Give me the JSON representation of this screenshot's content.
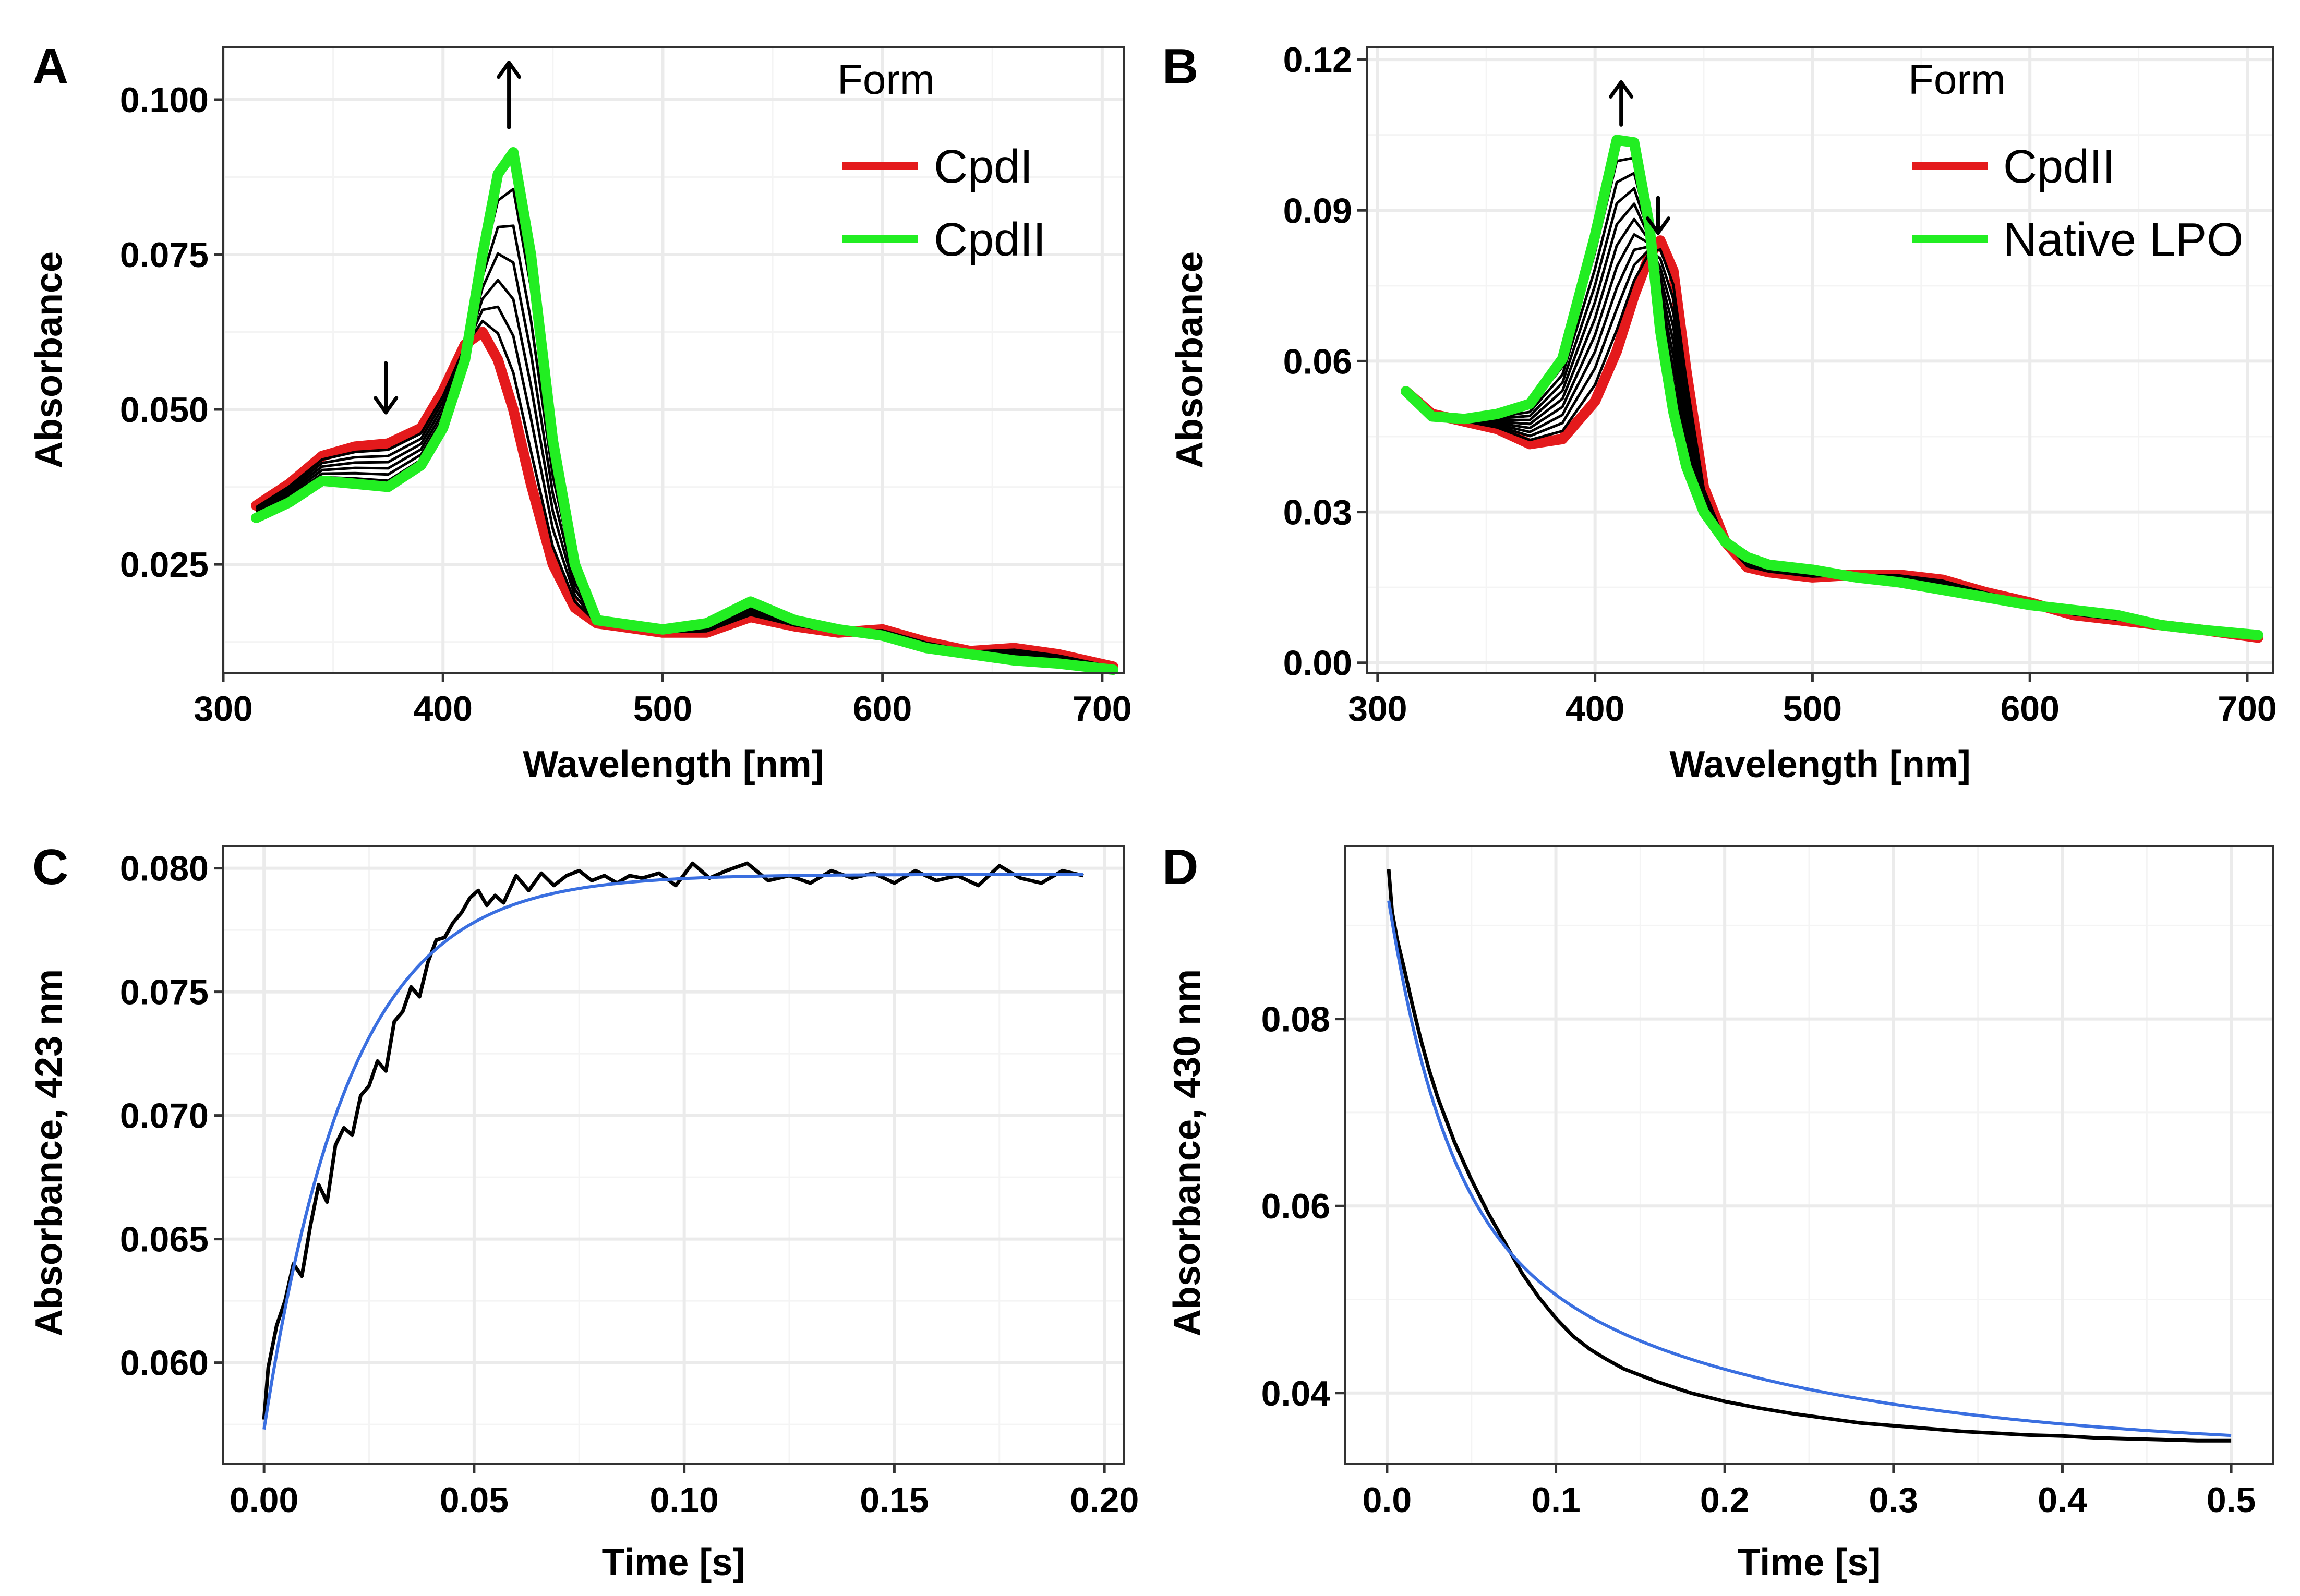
{
  "chart_data": [
    {
      "panel": "A",
      "type": "line",
      "xlabel": "Wavelength [nm]",
      "ylabel": "Absorbance",
      "xlim": [
        300,
        710
      ],
      "ylim": [
        0.0075,
        0.1085
      ],
      "xticks": [
        300,
        400,
        500,
        600,
        700
      ],
      "xtick_labels": [
        "300",
        "400",
        "500",
        "600",
        "700"
      ],
      "yticks": [
        0.025,
        0.05,
        0.075,
        0.1
      ],
      "ytick_labels": [
        "0.025",
        "0.050",
        "0.075",
        "0.100"
      ],
      "legend": {
        "title": "Form",
        "position": "top-right",
        "entries": [
          {
            "label": "CpdI",
            "color": "#e41a1c"
          },
          {
            "label": "CpdII",
            "color": "#22ee22"
          }
        ]
      },
      "start": {
        "x": [
          315,
          330,
          345,
          360,
          375,
          390,
          400,
          410,
          418,
          425,
          432,
          440,
          450,
          460,
          470,
          480,
          500,
          520,
          540,
          560,
          580,
          600,
          620,
          640,
          660,
          680,
          705
        ],
        "y": [
          0.0345,
          0.038,
          0.0425,
          0.044,
          0.0445,
          0.047,
          0.053,
          0.0605,
          0.0625,
          0.058,
          0.05,
          0.038,
          0.025,
          0.018,
          0.0155,
          0.015,
          0.014,
          0.014,
          0.0165,
          0.015,
          0.014,
          0.0145,
          0.0125,
          0.011,
          0.0115,
          0.0105,
          0.0085
        ]
      },
      "end": {
        "x": [
          315,
          330,
          345,
          360,
          375,
          390,
          400,
          410,
          418,
          425,
          432,
          440,
          450,
          460,
          470,
          480,
          500,
          520,
          540,
          560,
          580,
          600,
          620,
          640,
          660,
          680,
          705
        ],
        "y": [
          0.0325,
          0.035,
          0.0385,
          0.038,
          0.0375,
          0.041,
          0.047,
          0.058,
          0.075,
          0.088,
          0.0915,
          0.075,
          0.045,
          0.025,
          0.016,
          0.0155,
          0.0145,
          0.0155,
          0.019,
          0.016,
          0.0145,
          0.0135,
          0.0115,
          0.0105,
          0.0095,
          0.009,
          0.008
        ]
      },
      "intermediate_count": 6,
      "arrows": [
        {
          "x": 374,
          "y_tail": 0.0575,
          "y_head": 0.0495,
          "dir": "down"
        },
        {
          "x": 430,
          "y_tail": 0.0955,
          "y_head": 0.106,
          "dir": "up"
        }
      ]
    },
    {
      "panel": "B",
      "type": "line",
      "xlabel": "Wavelength [nm]",
      "ylabel": "Absorbance",
      "xlim": [
        295,
        712
      ],
      "ylim": [
        -0.002,
        0.1225
      ],
      "xticks": [
        300,
        400,
        500,
        600,
        700
      ],
      "xtick_labels": [
        "300",
        "400",
        "500",
        "600",
        "700"
      ],
      "yticks": [
        0,
        0.03,
        0.06,
        0.09,
        0.12
      ],
      "ytick_labels": [
        "0.00",
        "0.03",
        "0.06",
        "0.09",
        "0.12"
      ],
      "legend": {
        "title": "Form",
        "position": "top-right",
        "entries": [
          {
            "label": "CpdII",
            "color": "#e41a1c"
          },
          {
            "label": "Native LPO",
            "color": "#22ee22"
          }
        ]
      },
      "start": {
        "x": [
          313,
          325,
          340,
          355,
          370,
          385,
          400,
          410,
          418,
          425,
          430,
          436,
          442,
          450,
          460,
          470,
          480,
          500,
          520,
          540,
          560,
          580,
          600,
          620,
          640,
          660,
          680,
          705
        ],
        "y": [
          0.054,
          0.0495,
          0.048,
          0.0465,
          0.0435,
          0.0445,
          0.052,
          0.062,
          0.073,
          0.081,
          0.084,
          0.078,
          0.058,
          0.035,
          0.024,
          0.019,
          0.018,
          0.017,
          0.0175,
          0.0175,
          0.0165,
          0.014,
          0.012,
          0.0095,
          0.0085,
          0.0075,
          0.0065,
          0.005
        ]
      },
      "end": {
        "x": [
          313,
          325,
          340,
          355,
          370,
          385,
          400,
          410,
          418,
          425,
          430,
          436,
          442,
          450,
          460,
          470,
          480,
          500,
          520,
          540,
          560,
          580,
          600,
          620,
          640,
          660,
          680,
          705
        ],
        "y": [
          0.054,
          0.049,
          0.0485,
          0.0495,
          0.0515,
          0.0605,
          0.085,
          0.104,
          0.1035,
          0.087,
          0.066,
          0.05,
          0.039,
          0.03,
          0.024,
          0.021,
          0.0195,
          0.0185,
          0.017,
          0.016,
          0.0145,
          0.013,
          0.0115,
          0.0105,
          0.0095,
          0.0075,
          0.0065,
          0.0055
        ]
      },
      "intermediate_count": 9,
      "arrows": [
        {
          "x": 412,
          "y_tail": 0.107,
          "y_head": 0.1155,
          "dir": "up"
        },
        {
          "x": 429,
          "y_tail": 0.0925,
          "y_head": 0.0855,
          "dir": "down"
        }
      ]
    },
    {
      "panel": "C",
      "type": "line",
      "xlabel": "Time [s]",
      "ylabel": "Absorbance, 423 nm",
      "xlim": [
        -0.0097,
        0.2047
      ],
      "ylim": [
        0.0559,
        0.0809
      ],
      "xticks": [
        0,
        0.05,
        0.1,
        0.15,
        0.2
      ],
      "xtick_labels": [
        "0.00",
        "0.05",
        "0.10",
        "0.15",
        "0.20"
      ],
      "yticks": [
        0.06,
        0.065,
        0.07,
        0.075,
        0.08
      ],
      "ytick_labels": [
        "0.060",
        "0.065",
        "0.070",
        "0.075",
        "0.080"
      ],
      "series": [
        {
          "name": "data",
          "color": "#000000",
          "x": [
            0.0,
            0.001,
            0.003,
            0.005,
            0.007,
            0.009,
            0.011,
            0.013,
            0.015,
            0.017,
            0.019,
            0.021,
            0.023,
            0.025,
            0.027,
            0.029,
            0.031,
            0.033,
            0.035,
            0.037,
            0.039,
            0.041,
            0.043,
            0.045,
            0.047,
            0.049,
            0.051,
            0.053,
            0.055,
            0.057,
            0.06,
            0.063,
            0.066,
            0.069,
            0.072,
            0.075,
            0.078,
            0.081,
            0.084,
            0.087,
            0.09,
            0.094,
            0.098,
            0.102,
            0.106,
            0.11,
            0.115,
            0.12,
            0.125,
            0.13,
            0.135,
            0.14,
            0.145,
            0.15,
            0.155,
            0.16,
            0.165,
            0.17,
            0.175,
            0.18,
            0.185,
            0.19,
            0.195
          ],
          "y": [
            0.0577,
            0.0598,
            0.0615,
            0.0625,
            0.064,
            0.0635,
            0.0655,
            0.0672,
            0.0665,
            0.0688,
            0.0695,
            0.0692,
            0.0708,
            0.0712,
            0.0722,
            0.0718,
            0.0738,
            0.0742,
            0.0752,
            0.0748,
            0.0762,
            0.0771,
            0.0772,
            0.0778,
            0.0782,
            0.0788,
            0.0791,
            0.0785,
            0.0789,
            0.0786,
            0.0797,
            0.0791,
            0.0798,
            0.0793,
            0.0797,
            0.0799,
            0.0795,
            0.0797,
            0.0794,
            0.0797,
            0.0796,
            0.0798,
            0.0793,
            0.0802,
            0.0796,
            0.0799,
            0.0802,
            0.0795,
            0.0797,
            0.0794,
            0.0799,
            0.0796,
            0.0798,
            0.0794,
            0.0799,
            0.0795,
            0.0797,
            0.0793,
            0.0801,
            0.0796,
            0.0794,
            0.0799,
            0.0797
          ]
        },
        {
          "name": "fit",
          "color": "#3a6fe0",
          "model": "exponential_rise",
          "y0": 0.0573,
          "yinf": 0.07975,
          "k": 49,
          "x_range": [
            0,
            0.195
          ]
        }
      ]
    },
    {
      "panel": "D",
      "type": "line",
      "xlabel": "Time [s]",
      "ylabel": "Absorbance, 430 nm",
      "xlim": [
        -0.025,
        0.525
      ],
      "ylim": [
        0.0324,
        0.0985
      ],
      "xticks": [
        0,
        0.1,
        0.2,
        0.3,
        0.4,
        0.5
      ],
      "xtick_labels": [
        "0.0",
        "0.1",
        "0.2",
        "0.3",
        "0.4",
        "0.5"
      ],
      "yticks": [
        0.04,
        0.06,
        0.08
      ],
      "ytick_labels": [
        "0.04",
        "0.06",
        "0.08"
      ],
      "series": [
        {
          "name": "data",
          "color": "#000000",
          "x": [
            0.001,
            0.003,
            0.006,
            0.01,
            0.015,
            0.02,
            0.025,
            0.03,
            0.04,
            0.05,
            0.06,
            0.07,
            0.08,
            0.09,
            0.1,
            0.11,
            0.12,
            0.13,
            0.14,
            0.15,
            0.16,
            0.18,
            0.2,
            0.22,
            0.24,
            0.26,
            0.28,
            0.3,
            0.32,
            0.34,
            0.36,
            0.38,
            0.4,
            0.42,
            0.44,
            0.46,
            0.48,
            0.5
          ],
          "y": [
            0.096,
            0.0915,
            0.0885,
            0.0855,
            0.0815,
            0.0778,
            0.0745,
            0.0716,
            0.0668,
            0.0628,
            0.0592,
            0.056,
            0.0528,
            0.0502,
            0.048,
            0.0461,
            0.0447,
            0.0436,
            0.0426,
            0.0419,
            0.0412,
            0.04,
            0.0391,
            0.0384,
            0.0378,
            0.0373,
            0.0368,
            0.0365,
            0.0362,
            0.0359,
            0.0357,
            0.0355,
            0.0354,
            0.0352,
            0.0351,
            0.035,
            0.0349,
            0.0349
          ]
        },
        {
          "name": "fit",
          "color": "#3a6fe0",
          "model": "biexponential_decay",
          "yinf": 0.0338,
          "a1": 0.034,
          "k1": 30,
          "a2": 0.026,
          "k2": 5.5,
          "x_range": [
            0.001,
            0.5
          ]
        }
      ]
    }
  ]
}
